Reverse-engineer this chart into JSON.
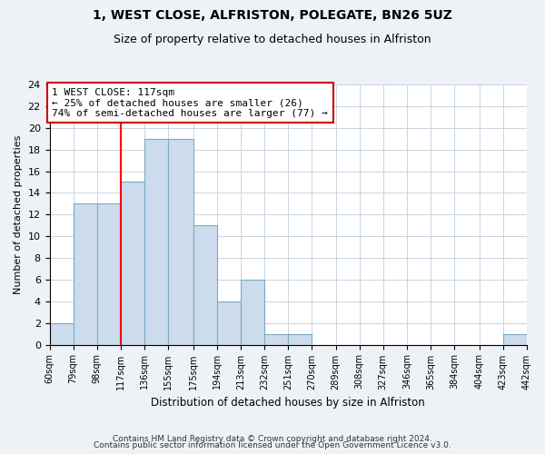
{
  "title": "1, WEST CLOSE, ALFRISTON, POLEGATE, BN26 5UZ",
  "subtitle": "Size of property relative to detached houses in Alfriston",
  "xlabel": "Distribution of detached houses by size in Alfriston",
  "ylabel": "Number of detached properties",
  "bin_edges": [
    60,
    79,
    98,
    117,
    136,
    155,
    175,
    194,
    213,
    232,
    251,
    270,
    289,
    308,
    327,
    346,
    365,
    384,
    404,
    423,
    442
  ],
  "counts": [
    2,
    13,
    13,
    15,
    19,
    19,
    11,
    4,
    6,
    1,
    1,
    0,
    0,
    0,
    0,
    0,
    0,
    0,
    0,
    1
  ],
  "bar_color": "#ccdcec",
  "bar_edgecolor": "#7aaac8",
  "red_line_x": 117,
  "annotation_line1": "1 WEST CLOSE: 117sqm",
  "annotation_line2": "← 25% of detached houses are smaller (26)",
  "annotation_line3": "74% of semi-detached houses are larger (77) →",
  "annotation_box_edgecolor": "#cc0000",
  "ylim": [
    0,
    24
  ],
  "yticks": [
    0,
    2,
    4,
    6,
    8,
    10,
    12,
    14,
    16,
    18,
    20,
    22,
    24
  ],
  "footer_line1": "Contains HM Land Registry data © Crown copyright and database right 2024.",
  "footer_line2": "Contains public sector information licensed under the Open Government Licence v3.0.",
  "background_color": "#eef2f7",
  "plot_bg_color": "#ffffff",
  "grid_color": "#c8d4e0"
}
